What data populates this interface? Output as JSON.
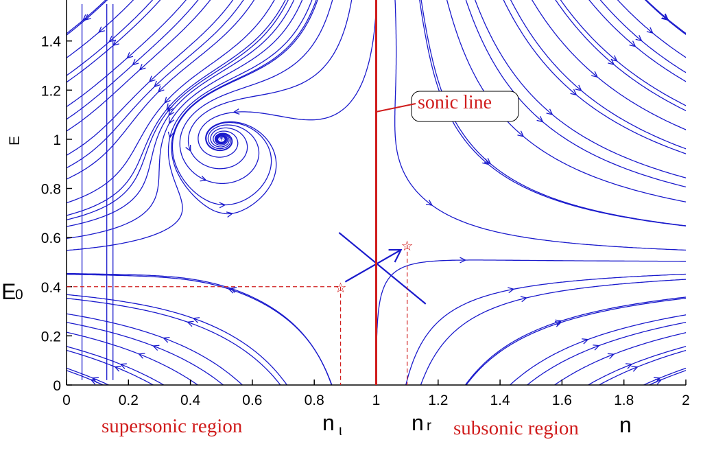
{
  "chart_data": {
    "type": "streamplot",
    "xlabel": "n",
    "ylabel": "E",
    "xlim": [
      0,
      2
    ],
    "ylim": [
      0,
      1.55
    ],
    "x_ticks": [
      "0",
      "0.2",
      "0.4",
      "0.6",
      "0.8",
      "1",
      "1.2",
      "1.4",
      "1.6",
      "1.8",
      "2"
    ],
    "y_ticks": [
      "0",
      "0.2",
      "0.4",
      "0.6",
      "0.8",
      "1",
      "1.2",
      "1.4"
    ],
    "grid": false,
    "colors": {
      "stream": "#1a1acc",
      "annotation": "#d01c1c",
      "axis": "#000000"
    },
    "sonic_line": {
      "x": 1.0,
      "label": "sonic line"
    },
    "focus_point": {
      "x": 0.5,
      "y": 1.0
    },
    "saddle_point": {
      "x": 1.0,
      "y": 0.5
    },
    "marked_points": [
      {
        "name": "n_l",
        "x": 0.885,
        "y": 0.4
      },
      {
        "name": "n_r",
        "x": 1.1,
        "y": 0.57
      }
    ],
    "annotations": {
      "E0": "E",
      "E0_sub": "0",
      "n_l": "n",
      "n_l_sub": "ι",
      "n_r": "n",
      "n_r_sub": "r",
      "left_region": "supersonic region",
      "right_region": "subsonic region"
    }
  }
}
